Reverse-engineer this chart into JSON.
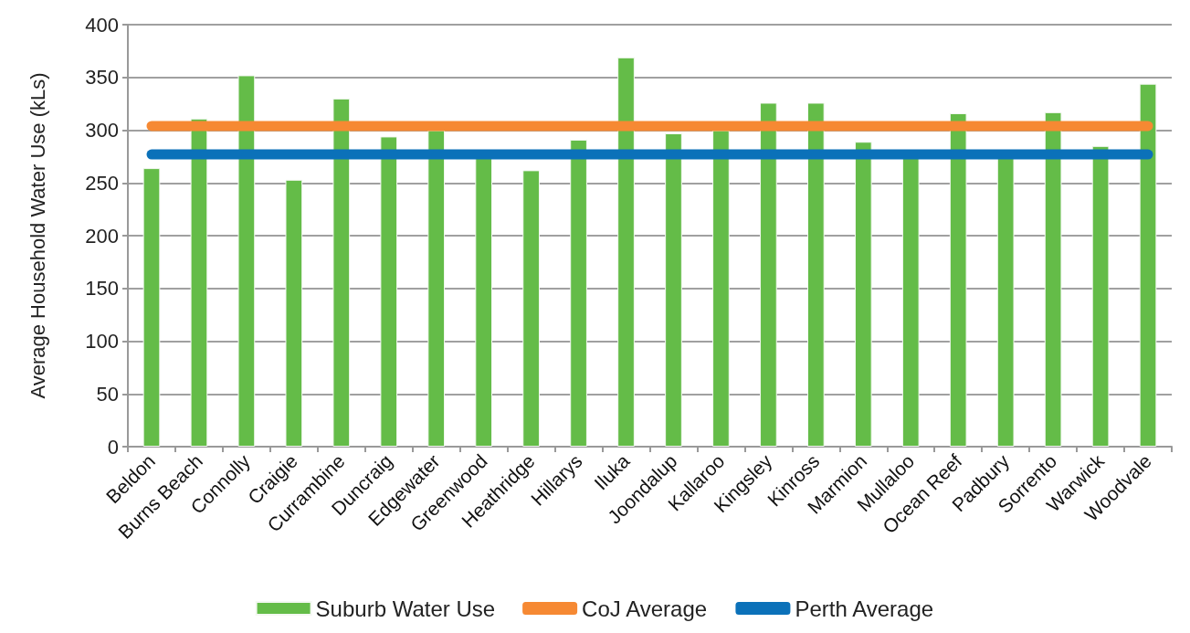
{
  "chart_data": {
    "type": "bar",
    "ylabel": "Average Household Water Use (kLs)",
    "categories": [
      "Beldon",
      "Burns Beach",
      "Connolly",
      "Craigie",
      "Currambine",
      "Duncraig",
      "Edgewater",
      "Greenwood",
      "Heathridge",
      "Hillarys",
      "Iluka",
      "Joondalup",
      "Kallaroo",
      "Kingsley",
      "Kinross",
      "Marmion",
      "Mullaloo",
      "Ocean Reef",
      "Padbury",
      "Sorrento",
      "Warwick",
      "Woodvale"
    ],
    "series": [
      {
        "name": "Suburb Water Use",
        "color": "#64bc48",
        "values": [
          264,
          311,
          352,
          253,
          330,
          294,
          300,
          276,
          262,
          291,
          369,
          297,
          300,
          326,
          326,
          289,
          276,
          316,
          276,
          317,
          285,
          344
        ]
      },
      {
        "name": "CoJ Average",
        "type": "line",
        "color": "#f68933",
        "values": [
          304,
          304,
          304,
          304,
          304,
          304,
          304,
          304,
          304,
          304,
          304,
          304,
          304,
          304,
          304,
          304,
          304,
          304,
          304,
          304,
          304,
          304
        ]
      },
      {
        "name": "Perth Average",
        "type": "line",
        "color": "#0b71b9",
        "values": [
          277,
          277,
          277,
          277,
          277,
          277,
          277,
          277,
          277,
          277,
          277,
          277,
          277,
          277,
          277,
          277,
          277,
          277,
          277,
          277,
          277,
          277
        ]
      }
    ],
    "ylim": [
      0,
      400
    ],
    "yticks": [
      0,
      50,
      100,
      150,
      200,
      250,
      300,
      350,
      400
    ],
    "grid": "y",
    "legend": "bottom",
    "marker": "none",
    "line_style": "solid"
  }
}
